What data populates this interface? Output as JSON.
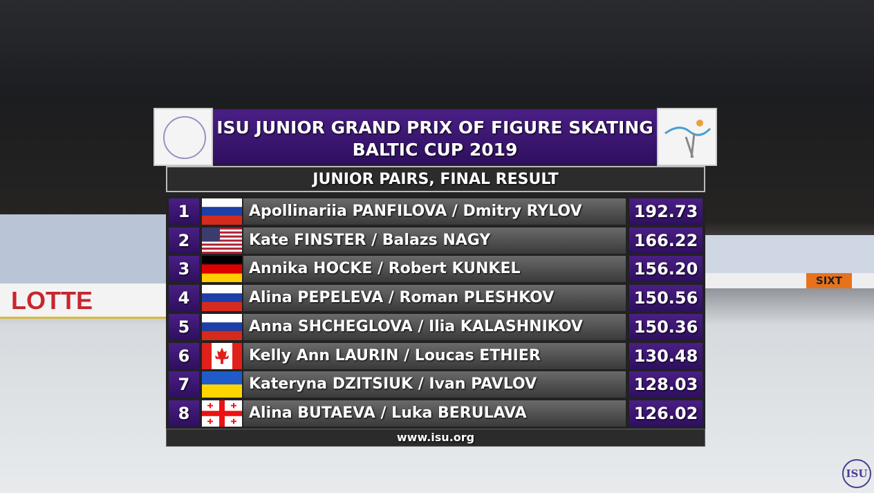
{
  "header": {
    "title_line1": "ISU JUNIOR GRAND PRIX OF FIGURE SKATING",
    "title_line2": "BALTIC CUP 2019",
    "subtitle": "JUNIOR PAIRS, FINAL RESULT"
  },
  "table": {
    "rows": [
      [
        "1",
        "Apollinariia PANFILOVA / Dmitry RYLOV",
        "192.73"
      ],
      [
        "2",
        "Kate FINSTER / Balazs NAGY",
        "166.22"
      ],
      [
        "3",
        "Annika HOCKE / Robert KUNKEL",
        "156.20"
      ],
      [
        "4",
        "Alina PEPELEVA / Roman PLESHKOV",
        "150.56"
      ],
      [
        "5",
        "Anna SHCHEGLOVA / Ilia KALASHNIKOV",
        "150.36"
      ],
      [
        "6",
        "Kelly Ann LAURIN / Loucas ETHIER",
        "130.48"
      ],
      [
        "7",
        "Kateryna DZITSIUK / Ivan PAVLOV",
        "128.03"
      ],
      [
        "8",
        "Alina BUTAEVA / Luka BERULAVA",
        "126.02"
      ]
    ]
  },
  "footer": "www.isu.org",
  "background": {
    "board_left": "LOTTE",
    "board_right": "SIXT",
    "logo": "ISU"
  }
}
